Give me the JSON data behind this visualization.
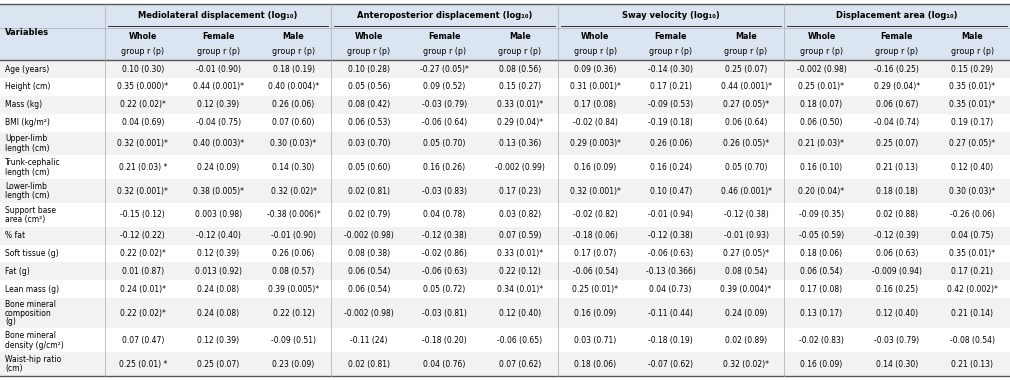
{
  "col_groups": [
    {
      "label": "Mediolateral displacement (log₁₀)",
      "cols": [
        1,
        2,
        3
      ]
    },
    {
      "label": "Anteroposterior displacement (log₁₀)",
      "cols": [
        4,
        5,
        6
      ]
    },
    {
      "label": "Sway velocity (log₁₀)",
      "cols": [
        7,
        8,
        9
      ]
    },
    {
      "label": "Displacement area (log₁₀)",
      "cols": [
        10,
        11,
        12
      ]
    }
  ],
  "sub_headers": [
    "Whole\ngroup r (p)",
    "Female\ngroup r (p)",
    "Male\ngroup r (p)",
    "Whole\ngroup r (p)",
    "Female\ngroup r (p)",
    "Male\ngroup r (p)",
    "Whole\ngroup r (p)",
    "Female\ngroup r (p)",
    "Male\ngroup r (p)",
    "Whole\ngroup r (p)",
    "Female\ngroup r (p)",
    "Male\ngroup r (p)"
  ],
  "rows": [
    {
      "label": [
        "Age (years)"
      ],
      "values": [
        "0.10 (0.30)",
        "-0.01 (0.90)",
        "0.18 (0.19)",
        "0.10 (0.28)",
        "-0.27 (0.05)*",
        "0.08 (0.56)",
        "0.09 (0.36)",
        "-0.14 (0.30)",
        "0.25 (0.07)",
        "-0.002 (0.98)",
        "-0.16 (0.25)",
        "0.15 (0.29)"
      ]
    },
    {
      "label": [
        "Height (cm)"
      ],
      "values": [
        "0.35 (0.000)*",
        "0.44 (0.001)*",
        "0.40 (0.004)*",
        "0.05 (0.56)",
        "0.09 (0.52)",
        "0.15 (0.27)",
        "0.31 (0.001)*",
        "0.17 (0.21)",
        "0.44 (0.001)*",
        "0.25 (0.01)*",
        "0.29 (0.04)*",
        "0.35 (0.01)*"
      ]
    },
    {
      "label": [
        "Mass (kg)"
      ],
      "values": [
        "0.22 (0.02)*",
        "0.12 (0.39)",
        "0.26 (0.06)",
        "0.08 (0.42)",
        "-0.03 (0.79)",
        "0.33 (0.01)*",
        "0.17 (0.08)",
        "-0.09 (0.53)",
        "0.27 (0.05)*",
        "0.18 (0.07)",
        "0.06 (0.67)",
        "0.35 (0.01)*"
      ]
    },
    {
      "label": [
        "BMI (kg/m²)"
      ],
      "values": [
        "0.04 (0.69)",
        "-0.04 (0.75)",
        "0.07 (0.60)",
        "0.06 (0.53)",
        "-0.06 (0.64)",
        "0.29 (0.04)*",
        "-0.02 (0.84)",
        "-0.19 (0.18)",
        "0.06 (0.64)",
        "0.06 (0.50)",
        "-0.04 (0.74)",
        "0.19 (0.17)"
      ]
    },
    {
      "label": [
        "Upper-limb",
        "length (cm)"
      ],
      "values": [
        "0.32 (0.001)*",
        "0.40 (0.003)*",
        "0.30 (0.03)*",
        "0.03 (0.70)",
        "0.05 (0.70)",
        "0.13 (0.36)",
        "0.29 (0.003)*",
        "0.26 (0.06)",
        "0.26 (0.05)*",
        "0.21 (0.03)*",
        "0.25 (0.07)",
        "0.27 (0.05)*"
      ]
    },
    {
      "label": [
        "Trunk-cephalic",
        "length (cm)"
      ],
      "values": [
        "0.21 (0.03) *",
        "0.24 (0.09)",
        "0.14 (0.30)",
        "0.05 (0.60)",
        "0.16 (0.26)",
        "-0.002 (0.99)",
        "0.16 (0.09)",
        "0.16 (0.24)",
        "0.05 (0.70)",
        "0.16 (0.10)",
        "0.21 (0.13)",
        "0.12 (0.40)"
      ]
    },
    {
      "label": [
        "Lower-limb",
        "length (cm)"
      ],
      "values": [
        "0.32 (0.001)*",
        "0.38 (0.005)*",
        "0.32 (0.02)*",
        "0.02 (0.81)",
        "-0.03 (0.83)",
        "0.17 (0.23)",
        "0.32 (0.001)*",
        "0.10 (0.47)",
        "0.46 (0.001)*",
        "0.20 (0.04)*",
        "0.18 (0.18)",
        "0.30 (0.03)*"
      ]
    },
    {
      "label": [
        "Support base",
        "area (cm²)"
      ],
      "values": [
        "-0.15 (0.12)",
        "0.003 (0.98)",
        "-0.38 (0.006)*",
        "0.02 (0.79)",
        "0.04 (0.78)",
        "0.03 (0.82)",
        "-0.02 (0.82)",
        "-0.01 (0.94)",
        "-0.12 (0.38)",
        "-0.09 (0.35)",
        "0.02 (0.88)",
        "-0.26 (0.06)"
      ]
    },
    {
      "label": [
        "% fat"
      ],
      "values": [
        "-0.12 (0.22)",
        "-0.12 (0.40)",
        "-0.01 (0.90)",
        "-0.002 (0.98)",
        "-0.12 (0.38)",
        "0.07 (0.59)",
        "-0.18 (0.06)",
        "-0.12 (0.38)",
        "-0.01 (0.93)",
        "-0.05 (0.59)",
        "-0.12 (0.39)",
        "0.04 (0.75)"
      ]
    },
    {
      "label": [
        "Soft tissue (g)"
      ],
      "values": [
        "0.22 (0.02)*",
        "0.12 (0.39)",
        "0.26 (0.06)",
        "0.08 (0.38)",
        "-0.02 (0.86)",
        "0.33 (0.01)*",
        "0.17 (0.07)",
        "-0.06 (0.63)",
        "0.27 (0.05)*",
        "0.18 (0.06)",
        "0.06 (0.63)",
        "0.35 (0.01)*"
      ]
    },
    {
      "label": [
        "Fat (g)"
      ],
      "values": [
        "0.01 (0.87)",
        "0.013 (0.92)",
        "0.08 (0.57)",
        "0.06 (0.54)",
        "-0.06 (0.63)",
        "0.22 (0.12)",
        "-0.06 (0.54)",
        "-0.13 (0.366)",
        "0.08 (0.54)",
        "0.06 (0.54)",
        "-0.009 (0.94)",
        "0.17 (0.21)"
      ]
    },
    {
      "label": [
        "Lean mass (g)"
      ],
      "values": [
        "0.24 (0.01)*",
        "0.24 (0.08)",
        "0.39 (0.005)*",
        "0.06 (0.54)",
        "0.05 (0.72)",
        "0.34 (0.01)*",
        "0.25 (0.01)*",
        "0.04 (0.73)",
        "0.39 (0.004)*",
        "0.17 (0.08)",
        "0.16 (0.25)",
        "0.42 (0.002)*"
      ]
    },
    {
      "label": [
        "Bone mineral",
        "composition",
        "(g)"
      ],
      "values": [
        "0.22 (0.02)*",
        "0.24 (0.08)",
        "0.22 (0.12)",
        "-0.002 (0.98)",
        "-0.03 (0.81)",
        "0.12 (0.40)",
        "0.16 (0.09)",
        "-0.11 (0.44)",
        "0.24 (0.09)",
        "0.13 (0.17)",
        "0.12 (0.40)",
        "0.21 (0.14)"
      ]
    },
    {
      "label": [
        "Bone mineral",
        "density (g/cm²)"
      ],
      "values": [
        "0.07 (0.47)",
        "0.12 (0.39)",
        "-0.09 (0.51)",
        "-0.11 (24)",
        "-0.18 (0.20)",
        "-0.06 (0.65)",
        "0.03 (0.71)",
        "-0.18 (0.19)",
        "0.02 (0.89)",
        "-0.02 (0.83)",
        "-0.03 (0.79)",
        "-0.08 (0.54)"
      ]
    },
    {
      "label": [
        "Waist-hip ratio",
        "(cm)"
      ],
      "values": [
        "0.25 (0.01) *",
        "0.25 (0.07)",
        "0.23 (0.09)",
        "0.02 (0.81)",
        "0.04 (0.76)",
        "0.07 (0.62)",
        "0.18 (0.06)",
        "-0.07 (0.62)",
        "0.32 (0.02)*",
        "0.16 (0.09)",
        "0.14 (0.30)",
        "0.21 (0.13)"
      ]
    }
  ],
  "bg_header": "#dbe5f1",
  "bg_subheader": "#dbe5f1",
  "bg_row_even": "#f2f2f2",
  "bg_row_odd": "#ffffff",
  "line_color": "#aaaaaa",
  "text_color": "#000000",
  "font_size": 5.5,
  "header_font_size": 6.0,
  "subheader_font_size": 5.8
}
